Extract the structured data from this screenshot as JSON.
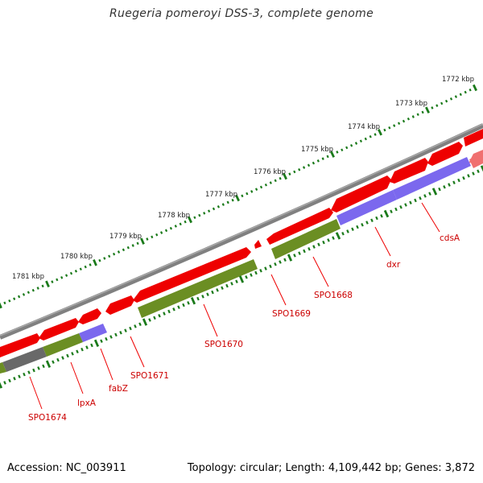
{
  "title": "Ruegeria pomeroyi DSS-3, complete genome",
  "footer": {
    "accession": "Accession: NC_003911",
    "stats": "Topology: circular; Length: 4,109,442 bp; Genes: 3,872"
  },
  "colors": {
    "backbone": "#808080",
    "forward_cds": "#ee0000",
    "forward_cds_light": "#f07070",
    "category_green": "#6b8e23",
    "category_blue": "#7b68ee",
    "category_gray": "#696969",
    "tick": "#1a7a1a",
    "gene_label": "#cc0000"
  },
  "ruler": [
    {
      "label": "1772 kbp"
    },
    {
      "label": "1773 kbp"
    },
    {
      "label": "1774 kbp"
    },
    {
      "label": "1775 kbp"
    },
    {
      "label": "1776 kbp"
    },
    {
      "label": "1777 kbp"
    },
    {
      "label": "1778 kbp"
    },
    {
      "label": "1779 kbp"
    },
    {
      "label": "1780 kbp"
    },
    {
      "label": "1781 kbp"
    }
  ],
  "genes": [
    {
      "name": "cdsA"
    },
    {
      "name": "dxr"
    },
    {
      "name": "SPO1668"
    },
    {
      "name": "SPO1669"
    },
    {
      "name": "SPO1670"
    },
    {
      "name": "SPO1671"
    },
    {
      "name": "fabZ"
    },
    {
      "name": "lpxA"
    },
    {
      "name": "SPO1674"
    }
  ]
}
